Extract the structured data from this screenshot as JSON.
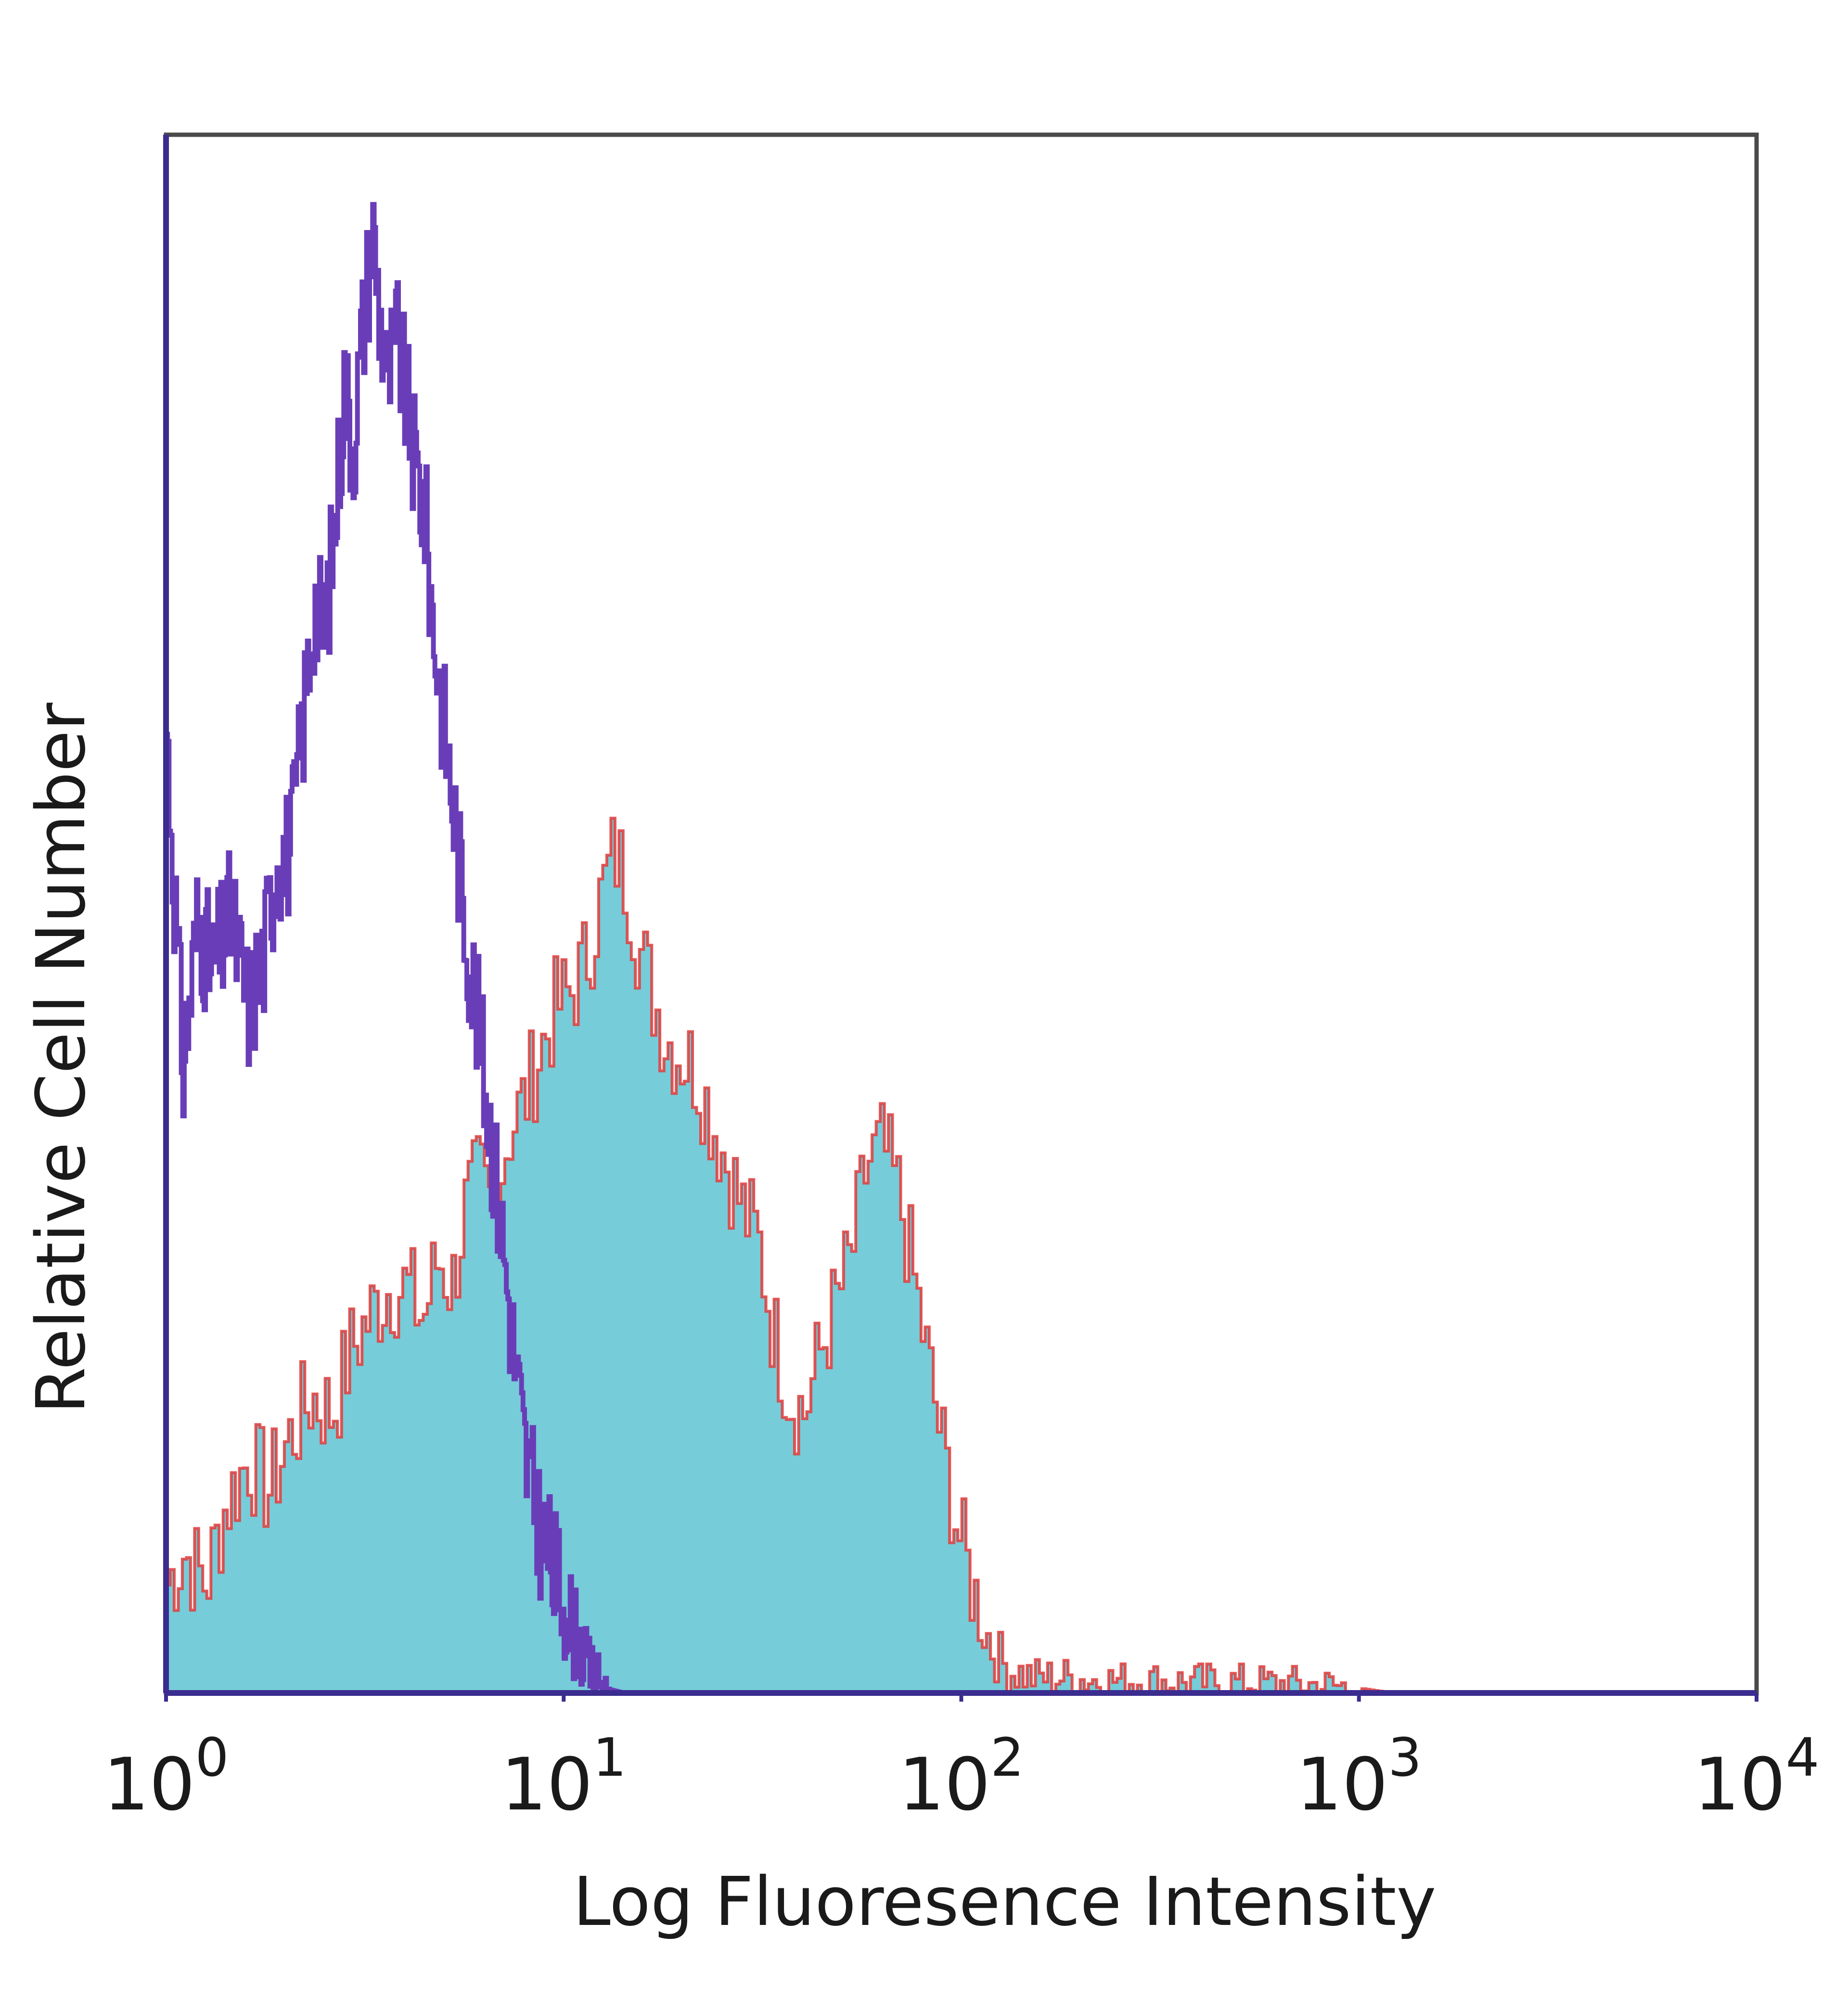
{
  "chart_data": {
    "type": "area",
    "title": "",
    "xlabel": "Log Fluoresence Intensity",
    "ylabel": "Relative Cell Number",
    "x_scale": "log",
    "xlim": [
      1,
      10000
    ],
    "ylim": [
      0,
      100
    ],
    "x_ticks": [
      {
        "base": "10",
        "exp": "0",
        "value": 1
      },
      {
        "base": "10",
        "exp": "1",
        "value": 10
      },
      {
        "base": "10",
        "exp": "2",
        "value": 100
      },
      {
        "base": "10",
        "exp": "3",
        "value": 1000
      },
      {
        "base": "10",
        "exp": "4",
        "value": 10000
      }
    ],
    "grid": false,
    "legend": "none",
    "series": [
      {
        "style": "outline",
        "color": "#6a3db8",
        "points": [
          [
            1.0,
            62
          ],
          [
            1.1,
            40
          ],
          [
            1.2,
            50
          ],
          [
            1.3,
            46
          ],
          [
            1.45,
            50
          ],
          [
            1.6,
            44
          ],
          [
            1.75,
            47
          ],
          [
            1.9,
            54
          ],
          [
            2.05,
            54
          ],
          [
            2.2,
            62
          ],
          [
            2.35,
            70
          ],
          [
            2.5,
            68
          ],
          [
            2.65,
            75
          ],
          [
            2.8,
            84
          ],
          [
            2.95,
            80
          ],
          [
            3.1,
            87
          ],
          [
            3.3,
            94
          ],
          [
            3.45,
            88
          ],
          [
            3.6,
            84
          ],
          [
            3.8,
            87
          ],
          [
            4.0,
            83
          ],
          [
            4.2,
            79
          ],
          [
            4.45,
            76
          ],
          [
            4.7,
            68
          ],
          [
            5.0,
            62
          ],
          [
            5.3,
            56
          ],
          [
            5.6,
            50
          ],
          [
            6.0,
            44
          ],
          [
            6.4,
            38
          ],
          [
            6.8,
            32
          ],
          [
            7.2,
            26
          ],
          [
            7.6,
            20
          ],
          [
            8.0,
            15
          ],
          [
            8.6,
            11
          ],
          [
            9.3,
            8
          ],
          [
            10.0,
            6
          ],
          [
            10.6,
            4
          ],
          [
            11.3,
            2
          ],
          [
            12.0,
            1
          ],
          [
            13.0,
            0.2
          ],
          [
            14.0,
            0
          ]
        ]
      },
      {
        "style": "filled",
        "color": "#76ccd8",
        "edge_color": "#e03a3a",
        "points": [
          [
            1.0,
            7
          ],
          [
            1.1,
            9
          ],
          [
            1.25,
            7
          ],
          [
            1.4,
            12
          ],
          [
            1.6,
            15
          ],
          [
            1.8,
            13
          ],
          [
            2.0,
            16
          ],
          [
            2.3,
            19
          ],
          [
            2.6,
            18
          ],
          [
            2.9,
            22
          ],
          [
            3.2,
            24
          ],
          [
            3.6,
            26
          ],
          [
            4.0,
            26
          ],
          [
            4.4,
            24
          ],
          [
            4.8,
            28
          ],
          [
            5.2,
            26
          ],
          [
            5.6,
            31
          ],
          [
            6.1,
            33
          ],
          [
            6.6,
            31
          ],
          [
            7.2,
            36
          ],
          [
            7.9,
            38
          ],
          [
            8.6,
            41
          ],
          [
            9.5,
            44
          ],
          [
            10.4,
            45
          ],
          [
            11.3,
            47
          ],
          [
            12.3,
            51
          ],
          [
            13.3,
            54
          ],
          [
            14.3,
            52
          ],
          [
            15.3,
            48
          ],
          [
            16.5,
            45
          ],
          [
            18.0,
            42
          ],
          [
            19.6,
            41
          ],
          [
            21.3,
            40
          ],
          [
            23.3,
            37
          ],
          [
            25.5,
            34
          ],
          [
            28.0,
            31
          ],
          [
            30.6,
            29
          ],
          [
            33.5,
            23
          ],
          [
            37.0,
            19
          ],
          [
            40.0,
            18
          ],
          [
            44.0,
            22
          ],
          [
            48.0,
            25
          ],
          [
            52.5,
            28
          ],
          [
            57.5,
            34
          ],
          [
            63.0,
            35
          ],
          [
            69.0,
            32
          ],
          [
            75.0,
            27
          ],
          [
            82.0,
            21
          ],
          [
            90.0,
            15
          ],
          [
            98.0,
            10
          ],
          [
            108.0,
            6
          ],
          [
            118.0,
            3
          ],
          [
            130.0,
            1.5
          ],
          [
            150.0,
            1
          ],
          [
            180.0,
            1
          ],
          [
            220.0,
            0.8
          ],
          [
            280.0,
            0.8
          ],
          [
            350.0,
            0.7
          ],
          [
            450.0,
            0.7
          ],
          [
            600.0,
            0.6
          ],
          [
            800.0,
            0.5
          ],
          [
            1000.0,
            0.3
          ],
          [
            1200.0,
            0
          ],
          [
            10000.0,
            0
          ]
        ]
      }
    ]
  }
}
